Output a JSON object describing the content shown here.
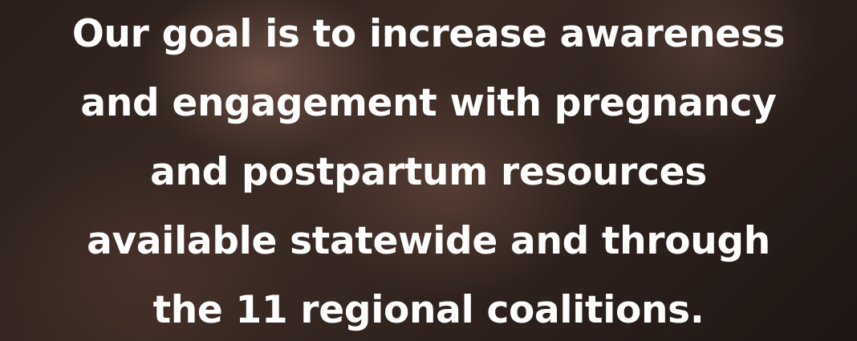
{
  "hero": {
    "lines": [
      "Our goal is to increase awareness",
      "and engagement with pregnancy",
      "and postpartum resources",
      "available statewide and through",
      "the 11 regional coalitions."
    ]
  }
}
